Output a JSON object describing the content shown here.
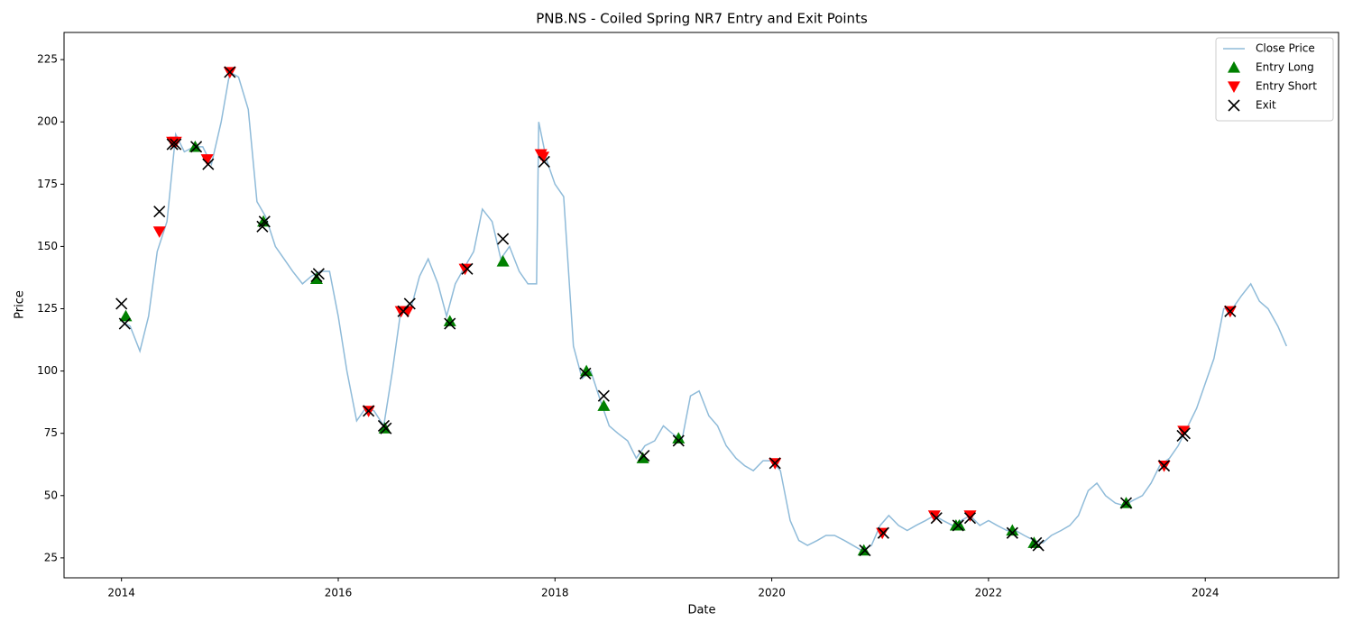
{
  "chart_data": {
    "type": "line",
    "title": "PNB.NS - Coiled Spring NR7 Entry and Exit Points",
    "x_label": "Date",
    "y_label": "Price",
    "xlim": [
      2013.47,
      2025.23
    ],
    "ylim": [
      17,
      235.9
    ],
    "xticks": [
      2014,
      2016,
      2018,
      2020,
      2022,
      2024
    ],
    "yticks": [
      25,
      50,
      75,
      100,
      125,
      150,
      175,
      200,
      225
    ],
    "legend": "upper right",
    "series": [
      {
        "name": "Close Price",
        "type": "line",
        "color": "#1f77b4",
        "alpha": 0.5,
        "x": [
          2014.0,
          2014.08,
          2014.17,
          2014.25,
          2014.33,
          2014.42,
          2014.5,
          2014.58,
          2014.67,
          2014.75,
          2014.83,
          2014.92,
          2015.0,
          2015.08,
          2015.17,
          2015.25,
          2015.33,
          2015.42,
          2015.5,
          2015.58,
          2015.67,
          2015.75,
          2015.83,
          2015.92,
          2016.0,
          2016.08,
          2016.17,
          2016.25,
          2016.33,
          2016.42,
          2016.5,
          2016.58,
          2016.67,
          2016.75,
          2016.83,
          2016.92,
          2017.0,
          2017.08,
          2017.17,
          2017.25,
          2017.33,
          2017.42,
          2017.5,
          2017.58,
          2017.67,
          2017.75,
          2017.83,
          2017.85,
          2017.92,
          2018.0,
          2018.08,
          2018.17,
          2018.25,
          2018.33,
          2018.42,
          2018.5,
          2018.58,
          2018.67,
          2018.75,
          2018.83,
          2018.92,
          2019.0,
          2019.08,
          2019.17,
          2019.25,
          2019.33,
          2019.42,
          2019.5,
          2019.58,
          2019.67,
          2019.75,
          2019.83,
          2019.92,
          2020.0,
          2020.08,
          2020.17,
          2020.25,
          2020.33,
          2020.42,
          2020.5,
          2020.58,
          2020.67,
          2020.75,
          2020.83,
          2020.92,
          2021.0,
          2021.08,
          2021.17,
          2021.25,
          2021.33,
          2021.42,
          2021.5,
          2021.58,
          2021.67,
          2021.75,
          2021.83,
          2021.92,
          2022.0,
          2022.08,
          2022.17,
          2022.25,
          2022.33,
          2022.42,
          2022.5,
          2022.58,
          2022.67,
          2022.75,
          2022.83,
          2022.92,
          2023.0,
          2023.08,
          2023.17,
          2023.25,
          2023.33,
          2023.42,
          2023.5,
          2023.58,
          2023.67,
          2023.75,
          2023.83,
          2023.92,
          2024.0,
          2024.08,
          2024.17,
          2024.25,
          2024.33,
          2024.42,
          2024.5,
          2024.58,
          2024.67,
          2024.75
        ],
        "values": [
          120,
          118,
          108,
          122,
          148,
          160,
          195,
          188,
          190,
          190,
          183,
          200,
          220,
          218,
          205,
          168,
          162,
          150,
          145,
          140,
          135,
          138,
          140,
          140,
          122,
          100,
          80,
          85,
          84,
          78,
          100,
          125,
          125,
          138,
          145,
          135,
          122,
          135,
          142,
          148,
          165,
          160,
          145,
          150,
          140,
          135,
          135,
          200,
          185,
          175,
          170,
          110,
          97,
          100,
          88,
          78,
          75,
          72,
          65,
          70,
          72,
          78,
          75,
          72,
          90,
          92,
          82,
          78,
          70,
          65,
          62,
          60,
          64,
          64,
          60,
          40,
          32,
          30,
          32,
          34,
          34,
          32,
          30,
          28,
          30,
          38,
          42,
          38,
          36,
          38,
          40,
          42,
          40,
          38,
          40,
          42,
          38,
          40,
          38,
          36,
          36,
          34,
          32,
          31,
          34,
          36,
          38,
          42,
          52,
          55,
          50,
          47,
          46,
          48,
          50,
          55,
          62,
          65,
          70,
          77,
          85,
          95,
          105,
          125,
          125,
          130,
          135,
          128,
          125,
          118,
          110
        ]
      },
      {
        "name": "Entry Long",
        "type": "scatter",
        "marker": "triangle-up",
        "color": "green",
        "x": [
          2014.04,
          2014.68,
          2015.31,
          2015.8,
          2016.43,
          2017.03,
          2017.52,
          2018.29,
          2018.45,
          2018.81,
          2019.14,
          2020.85,
          2021.7,
          2021.73,
          2022.22,
          2022.42,
          2023.27
        ],
        "values": [
          122,
          190,
          160,
          137,
          77,
          120,
          144,
          100,
          86,
          65,
          73,
          28,
          38,
          38,
          36,
          31,
          47
        ]
      },
      {
        "name": "Entry Short",
        "type": "scatter",
        "marker": "triangle-down",
        "color": "red",
        "x": [
          2014.35,
          2014.47,
          2014.5,
          2014.79,
          2015.0,
          2016.28,
          2016.58,
          2016.64,
          2017.17,
          2017.87,
          2017.89,
          2020.03,
          2021.02,
          2021.5,
          2021.83,
          2023.62,
          2023.8,
          2024.23
        ],
        "values": [
          156,
          192,
          192,
          185,
          220,
          84,
          124,
          124,
          141,
          187,
          186,
          63,
          35,
          42,
          42,
          62,
          76,
          124
        ]
      },
      {
        "name": "Exit",
        "type": "scatter",
        "marker": "x",
        "color": "black",
        "x": [
          2014.0,
          2014.03,
          2014.35,
          2014.47,
          2014.5,
          2014.69,
          2014.8,
          2015.0,
          2015.3,
          2015.32,
          2015.8,
          2015.82,
          2016.28,
          2016.42,
          2016.44,
          2016.6,
          2016.66,
          2017.03,
          2017.19,
          2017.52,
          2017.9,
          2018.28,
          2018.45,
          2018.82,
          2019.14,
          2020.03,
          2020.86,
          2021.03,
          2021.52,
          2021.72,
          2021.83,
          2022.22,
          2022.44,
          2022.46,
          2023.27,
          2023.62,
          2023.79,
          2023.81,
          2024.23
        ],
        "values": [
          127,
          119,
          164,
          191,
          191,
          190,
          183,
          220,
          158,
          160,
          138,
          139,
          84,
          78,
          77,
          124,
          127,
          119,
          141,
          153,
          184,
          99,
          90,
          66,
          72,
          63,
          28,
          35,
          41,
          38,
          41,
          35,
          31,
          30,
          47,
          62,
          74,
          75,
          124
        ]
      }
    ]
  }
}
